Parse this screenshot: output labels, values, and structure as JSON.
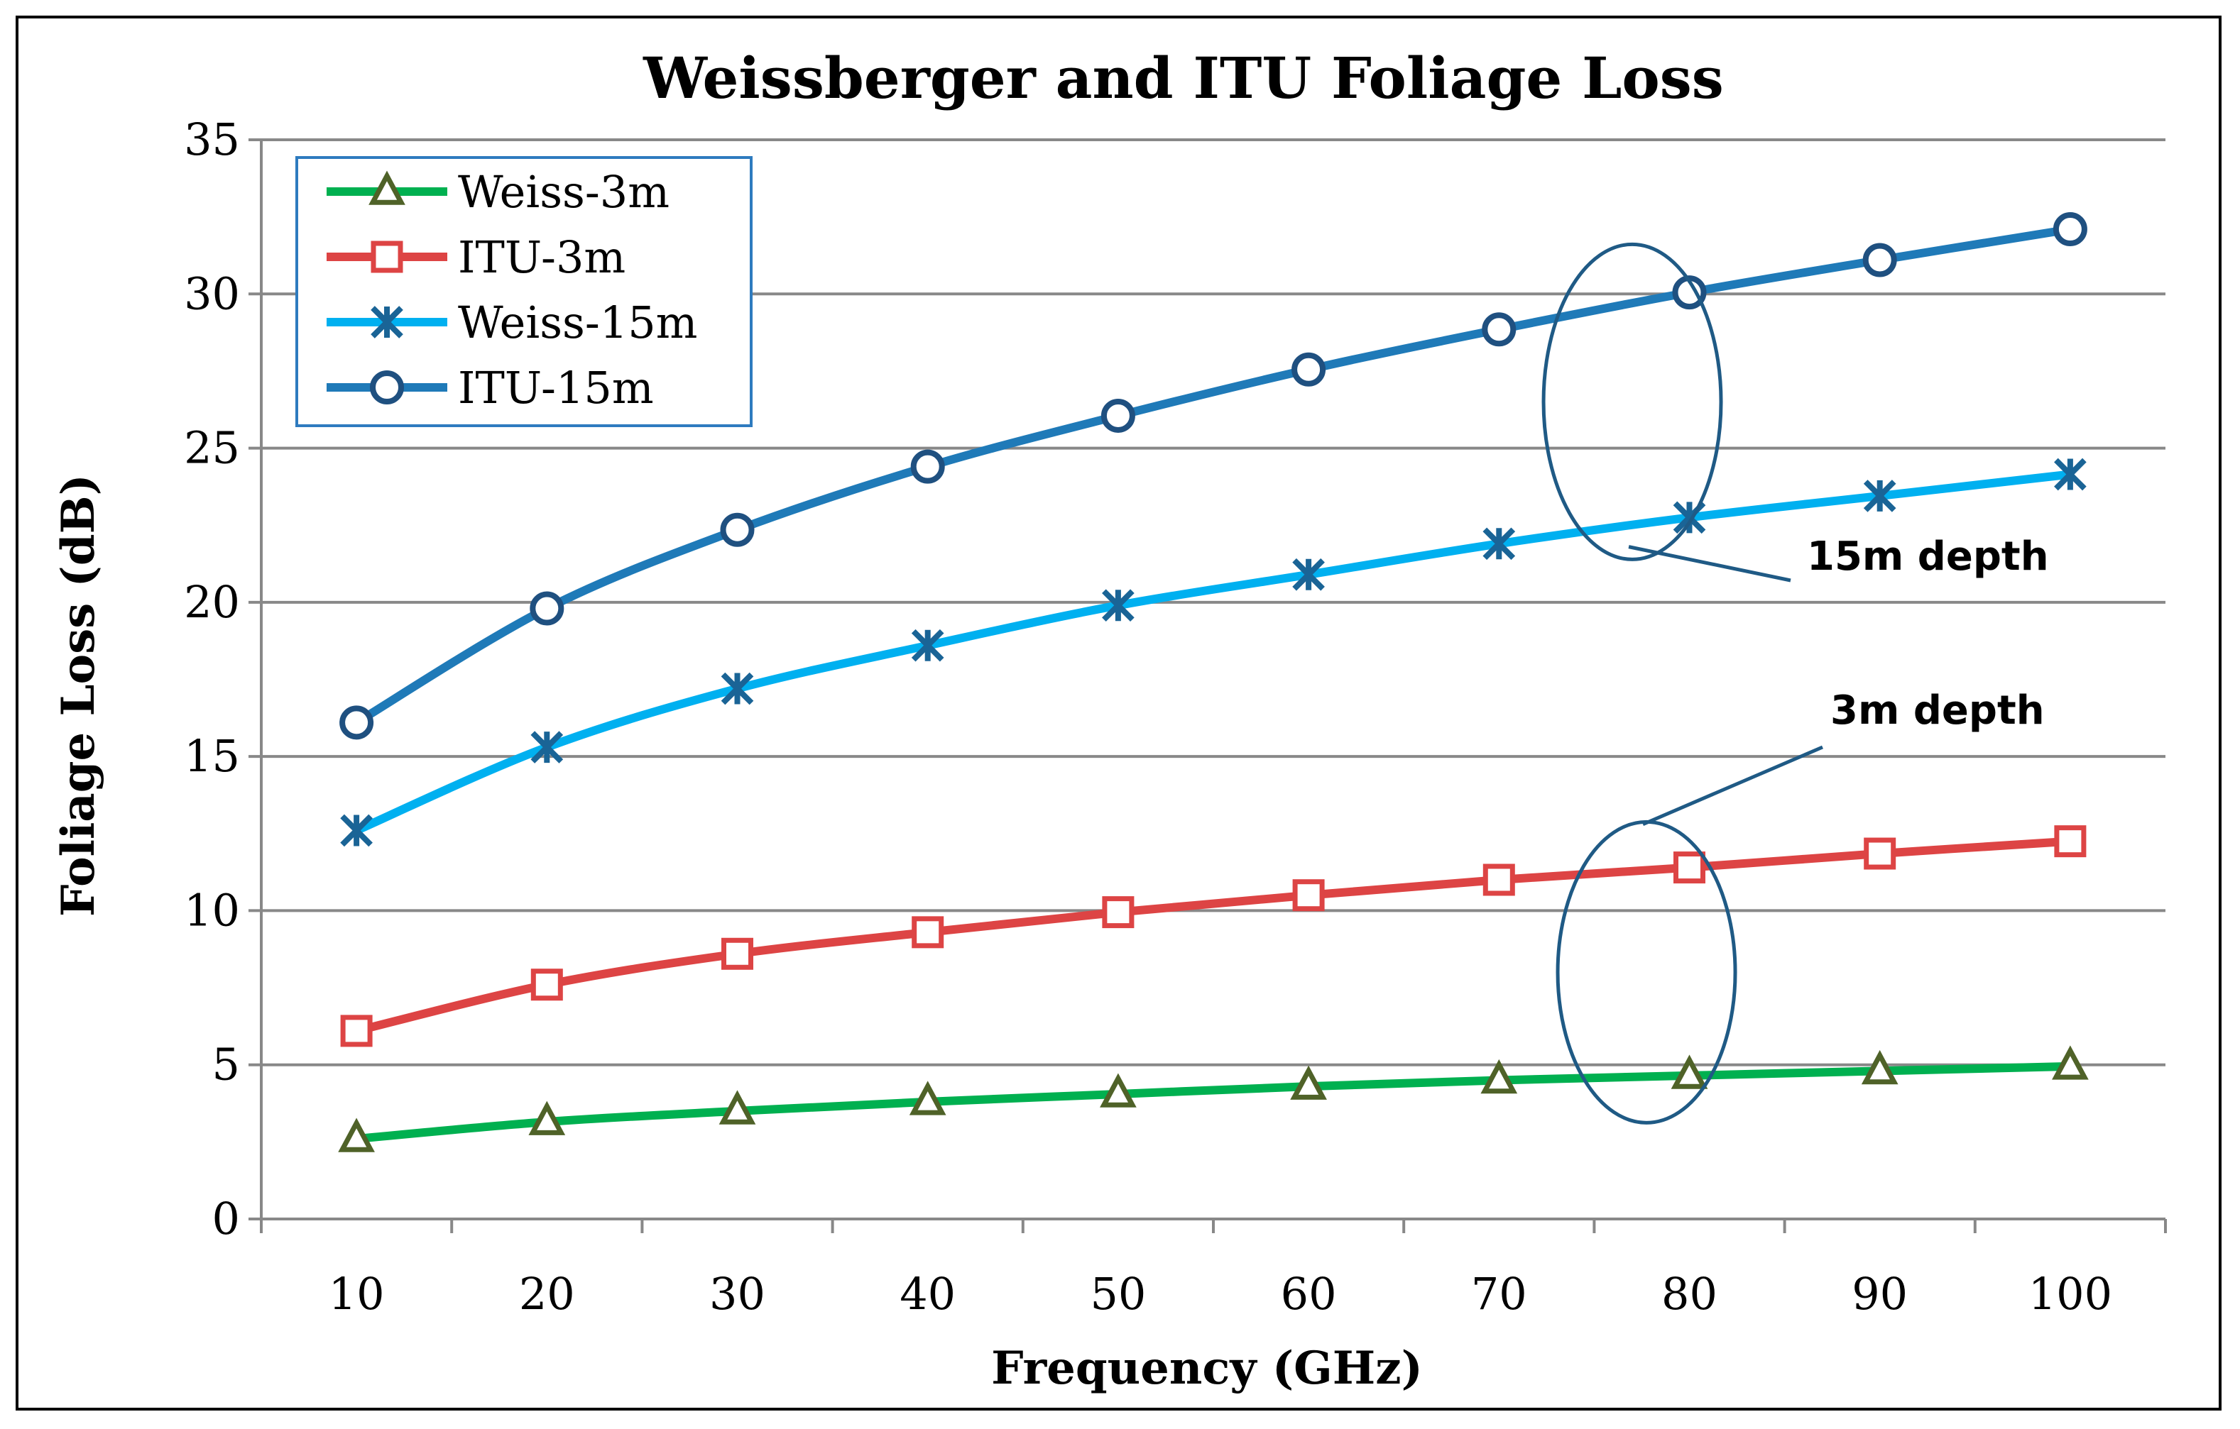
{
  "chart_data": {
    "type": "line",
    "title": "Weissberger and ITU Foliage Loss",
    "xlabel": "Frequency (GHz)",
    "ylabel": "Foliage Loss (dB)",
    "ylim": [
      0,
      35
    ],
    "yticks": [
      0,
      5,
      10,
      15,
      20,
      25,
      30,
      35
    ],
    "categories": [
      10,
      20,
      30,
      40,
      50,
      60,
      70,
      80,
      90,
      100
    ],
    "legend_position": "top-left",
    "grid": "horizontal",
    "series": [
      {
        "name": "Weiss-3m",
        "color": "#00b050",
        "marker": "triangle",
        "marker_color": "#4f6228",
        "values": [
          2.6,
          3.15,
          3.5,
          3.8,
          4.05,
          4.3,
          4.5,
          4.65,
          4.8,
          4.95
        ]
      },
      {
        "name": "ITU-3m",
        "color": "#dd4444",
        "marker": "square",
        "marker_color": "#dd4444",
        "values": [
          6.1,
          7.6,
          8.6,
          9.3,
          9.95,
          10.5,
          11.0,
          11.4,
          11.85,
          12.25
        ]
      },
      {
        "name": "Weiss-15m",
        "color": "#00b0f0",
        "marker": "star",
        "marker_color": "#1a6496",
        "values": [
          12.6,
          15.3,
          17.2,
          18.6,
          19.9,
          20.9,
          21.9,
          22.75,
          23.45,
          24.15
        ]
      },
      {
        "name": "ITU-15m",
        "color": "#1f7ab8",
        "marker": "circle",
        "marker_color": "#1f5080",
        "values": [
          16.1,
          19.8,
          22.35,
          24.4,
          26.05,
          27.55,
          28.85,
          30.05,
          31.1,
          32.1
        ]
      }
    ],
    "annotations": [
      {
        "text": "15m depth",
        "ellipse_x": 77,
        "ellipse_y": 26.5,
        "arrow_from_y": 21.8
      },
      {
        "text": "3m depth",
        "ellipse_x": 77,
        "ellipse_y": 8,
        "arrow_from_y": 12.8
      }
    ]
  }
}
